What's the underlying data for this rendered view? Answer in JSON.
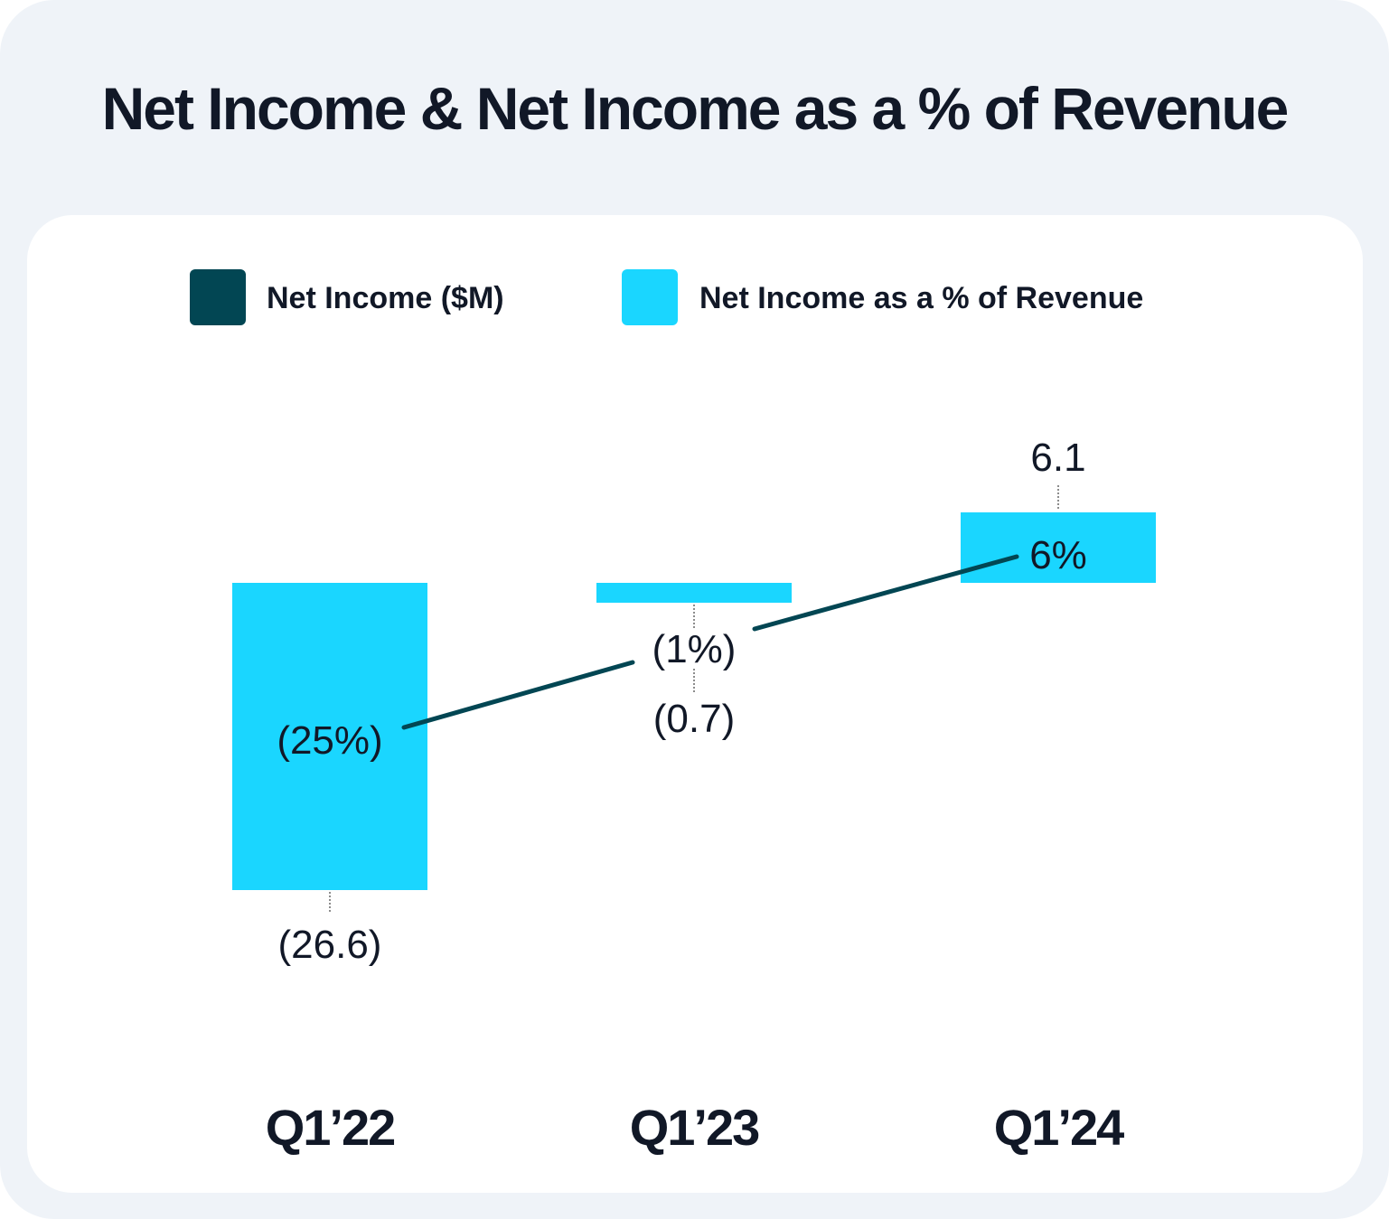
{
  "title": "Net Income & Net Income as a % of Revenue",
  "colors": {
    "net_income": "#024653",
    "pct_revenue": "#1ad6ff",
    "line": "#024653",
    "text": "#111827",
    "page_bg": "#eff3f8"
  },
  "legend": {
    "items": [
      {
        "label": "Net Income ($M)",
        "color": "#024653"
      },
      {
        "label": "Net Income as a % of Revenue",
        "color": "#1ad6ff"
      }
    ]
  },
  "chart_data": {
    "type": "bar",
    "title": "Net Income & Net Income as a % of Revenue",
    "categories": [
      "Q1’22",
      "Q1’23",
      "Q1’24"
    ],
    "series": [
      {
        "name": "Net Income ($M)",
        "type": "bar",
        "values": [
          -26.6,
          -0.7,
          6.1
        ],
        "labels": [
          "(26.6)",
          "(0.7)",
          "6.1"
        ]
      },
      {
        "name": "Net Income as a % of Revenue",
        "type": "line",
        "values": [
          -25,
          -1,
          6
        ],
        "labels": [
          "(25%)",
          "(1%)",
          "6%"
        ]
      }
    ],
    "legend_position": "top",
    "grid": false
  }
}
